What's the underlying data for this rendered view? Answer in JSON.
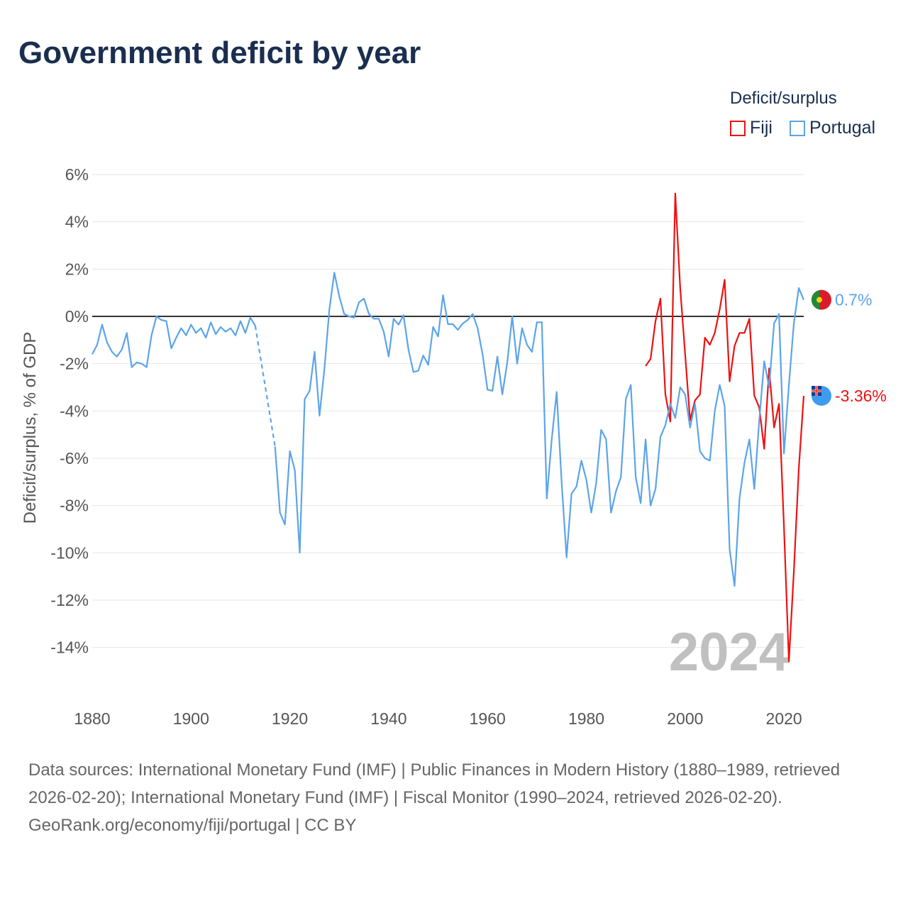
{
  "title": "Government deficit by year",
  "chart_data": {
    "type": "line",
    "title": "Government deficit by year",
    "ylabel": "Deficit/surplus, % of GDP",
    "xlabel": "",
    "xlim": [
      1880,
      2024
    ],
    "ylim": [
      -16,
      6
    ],
    "grid": true,
    "legend_title": "Deficit/surplus",
    "legend_position": "top-right",
    "x_ticks": [
      "1880",
      "1900",
      "1920",
      "1940",
      "1960",
      "1980",
      "2000",
      "2020"
    ],
    "y_ticks": [
      "6%",
      "4%",
      "2%",
      "0%",
      "-2%",
      "-4%",
      "-6%",
      "-8%",
      "-10%",
      "-12%",
      "-14%"
    ],
    "year_label": "2024",
    "series": [
      {
        "name": "Fiji",
        "color": "#ee1111",
        "start": 1992,
        "end_label": "-3.36%",
        "values": [
          -2.1,
          -1.8,
          -0.2,
          0.75,
          -3.3,
          -4.45,
          5.2,
          1.2,
          -1.6,
          -4.4,
          -3.55,
          -3.3,
          -0.9,
          -1.2,
          -0.7,
          0.3,
          1.55,
          -2.75,
          -1.25,
          -0.7,
          -0.7,
          -0.1,
          -3.35,
          -3.85,
          -5.6,
          -2.2,
          -4.7,
          -3.7,
          -8.9,
          -14.6,
          -10.8,
          -6.45,
          -3.36
        ]
      },
      {
        "name": "Portugal",
        "color": "#5ba4ea",
        "start": 1880,
        "end_label": "0.7%",
        "values": [
          -1.6,
          -1.2,
          -0.35,
          -1.1,
          -1.5,
          -1.7,
          -1.4,
          -0.7,
          -2.15,
          -1.95,
          -2.0,
          -2.15,
          -0.8,
          0,
          -0.15,
          -0.2,
          -1.35,
          -0.9,
          -0.5,
          -0.8,
          -0.35,
          -0.7,
          -0.5,
          -0.9,
          -0.25,
          -0.75,
          -0.45,
          -0.65,
          -0.5,
          -0.8,
          -0.2,
          -0.7,
          -0.05,
          -0.4,
          null,
          null,
          null,
          -5.5,
          -8.3,
          -8.8,
          -5.7,
          -6.5,
          -10,
          -3.5,
          -3.15,
          -1.5,
          -4.2,
          -2.2,
          0.3,
          1.85,
          0.85,
          0.1,
          0,
          -0.05,
          0.6,
          0.75,
          0.1,
          -0.1,
          -0.1,
          -0.65,
          -1.7,
          -0.1,
          -0.35,
          0.05,
          -1.4,
          -2.35,
          -2.3,
          -1.65,
          -2.05,
          -0.45,
          -0.85,
          0.9,
          -0.33,
          -0.33,
          -0.57,
          -0.3,
          -0.15,
          0.1,
          -0.5,
          -1.6,
          -3.1,
          -3.15,
          -1.7,
          -3.3,
          -1.95,
          0,
          -2.0,
          -0.5,
          -1.2,
          -1.5,
          -0.25,
          -0.25,
          -7.7,
          -5.2,
          -3.2,
          -7.0,
          -10.2,
          -7.5,
          -7.2,
          -6.1,
          -6.9,
          -8.3,
          -7.05,
          -4.8,
          -5.2,
          -8.3,
          -7.4,
          -6.8,
          -3.5,
          -2.9,
          -6.8,
          -7.9,
          -5.2,
          -8.0,
          -7.3,
          -5.1,
          -4.6,
          -3.7,
          -4.3,
          -3.0,
          -3.3,
          -4.7,
          -3.7,
          -5.7,
          -6.0,
          -6.1,
          -4.0,
          -2.9,
          -3.8,
          -9.85,
          -11.4,
          -7.7,
          -6.2,
          -5.2,
          -7.3,
          -4.4,
          -1.9,
          -3.0,
          -0.3,
          0.1,
          -5.8,
          -2.9,
          -0.3,
          1.2,
          0.7
        ]
      }
    ]
  },
  "footer": {
    "sources": "Data sources: International Monetary Fund (IMF) | Public Finances in Modern History (1880–1989, retrieved 2026-02-20); International Monetary Fund (IMF) | Fiscal Monitor (1990–2024, retrieved 2026-02-20).",
    "credit": "GeoRank.org/economy/fiji/portugal | CC BY"
  }
}
